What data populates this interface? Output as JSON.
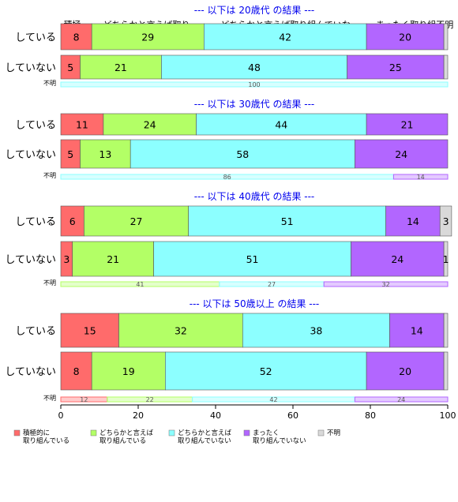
{
  "chart_data": {
    "type": "bar",
    "orientation": "horizontal",
    "stacked": true,
    "normalized_percent": true,
    "xlim": [
      0,
      100
    ],
    "x_ticks": [
      0,
      20,
      40,
      60,
      80,
      100
    ],
    "categories_legend": [
      "積極的に\n取り組んでいる",
      "どちらかと言えば\n取り組んでいる",
      "どちらかと言えば\n取り組んでいない",
      "まったく\n取り組んでいない",
      "不明"
    ],
    "colors": [
      "#ff6b6b",
      "#b3ff66",
      "#8cffff",
      "#b266ff",
      "#d9d9d9"
    ],
    "top_headers": [
      "積極..",
      "どちらかと言えば取り..",
      "どちらかと言えば取り組んでいな..",
      "まったく取り組不明"
    ],
    "panels": [
      {
        "title": "--- 以下は 20歳代 の結果 ---",
        "rows": [
          {
            "label": "している",
            "values": [
              8,
              29,
              42,
              20,
              1
            ],
            "labels": [
              "8",
              "29",
              "42",
              "20",
              ""
            ]
          },
          {
            "label": "していない",
            "values": [
              5,
              21,
              48,
              25,
              1
            ],
            "labels": [
              "5",
              "21",
              "48",
              "25",
              ""
            ]
          }
        ],
        "unknown": {
          "label": "不明",
          "values": [
            0,
            0,
            100,
            0,
            0
          ],
          "labels": [
            "",
            "",
            "100",
            "",
            ""
          ]
        }
      },
      {
        "title": "--- 以下は 30歳代 の結果 ---",
        "rows": [
          {
            "label": "している",
            "values": [
              11,
              24,
              44,
              21,
              0
            ],
            "labels": [
              "11",
              "24",
              "44",
              "21",
              ""
            ]
          },
          {
            "label": "していない",
            "values": [
              5,
              13,
              58,
              24,
              0
            ],
            "labels": [
              "5",
              "13",
              "58",
              "24",
              ""
            ]
          }
        ],
        "unknown": {
          "label": "不明",
          "values": [
            0,
            0,
            86,
            14,
            0
          ],
          "labels": [
            "",
            "",
            "86",
            "14",
            ""
          ]
        }
      },
      {
        "title": "--- 以下は 40歳代 の結果 ---",
        "rows": [
          {
            "label": "している",
            "values": [
              6,
              27,
              51,
              14,
              3
            ],
            "labels": [
              "6",
              "27",
              "51",
              "14",
              "3"
            ]
          },
          {
            "label": "していない",
            "values": [
              3,
              21,
              51,
              24,
              1
            ],
            "labels": [
              "3",
              "21",
              "51",
              "24",
              "1"
            ]
          }
        ],
        "unknown": {
          "label": "不明",
          "values": [
            0,
            41,
            27,
            32,
            0
          ],
          "labels": [
            "",
            "41",
            "27",
            "32",
            ""
          ]
        }
      },
      {
        "title": "--- 以下は 50歳以上 の結果 ---",
        "rows": [
          {
            "label": "している",
            "values": [
              15,
              32,
              38,
              14,
              1
            ],
            "labels": [
              "15",
              "32",
              "38",
              "14",
              ""
            ]
          },
          {
            "label": "していない",
            "values": [
              8,
              19,
              52,
              20,
              1
            ],
            "labels": [
              "8",
              "19",
              "52",
              "20",
              ""
            ]
          }
        ],
        "unknown": {
          "label": "不明",
          "values": [
            12,
            22,
            42,
            24,
            0
          ],
          "labels": [
            "12",
            "22",
            "42",
            "24",
            ""
          ]
        }
      }
    ]
  }
}
